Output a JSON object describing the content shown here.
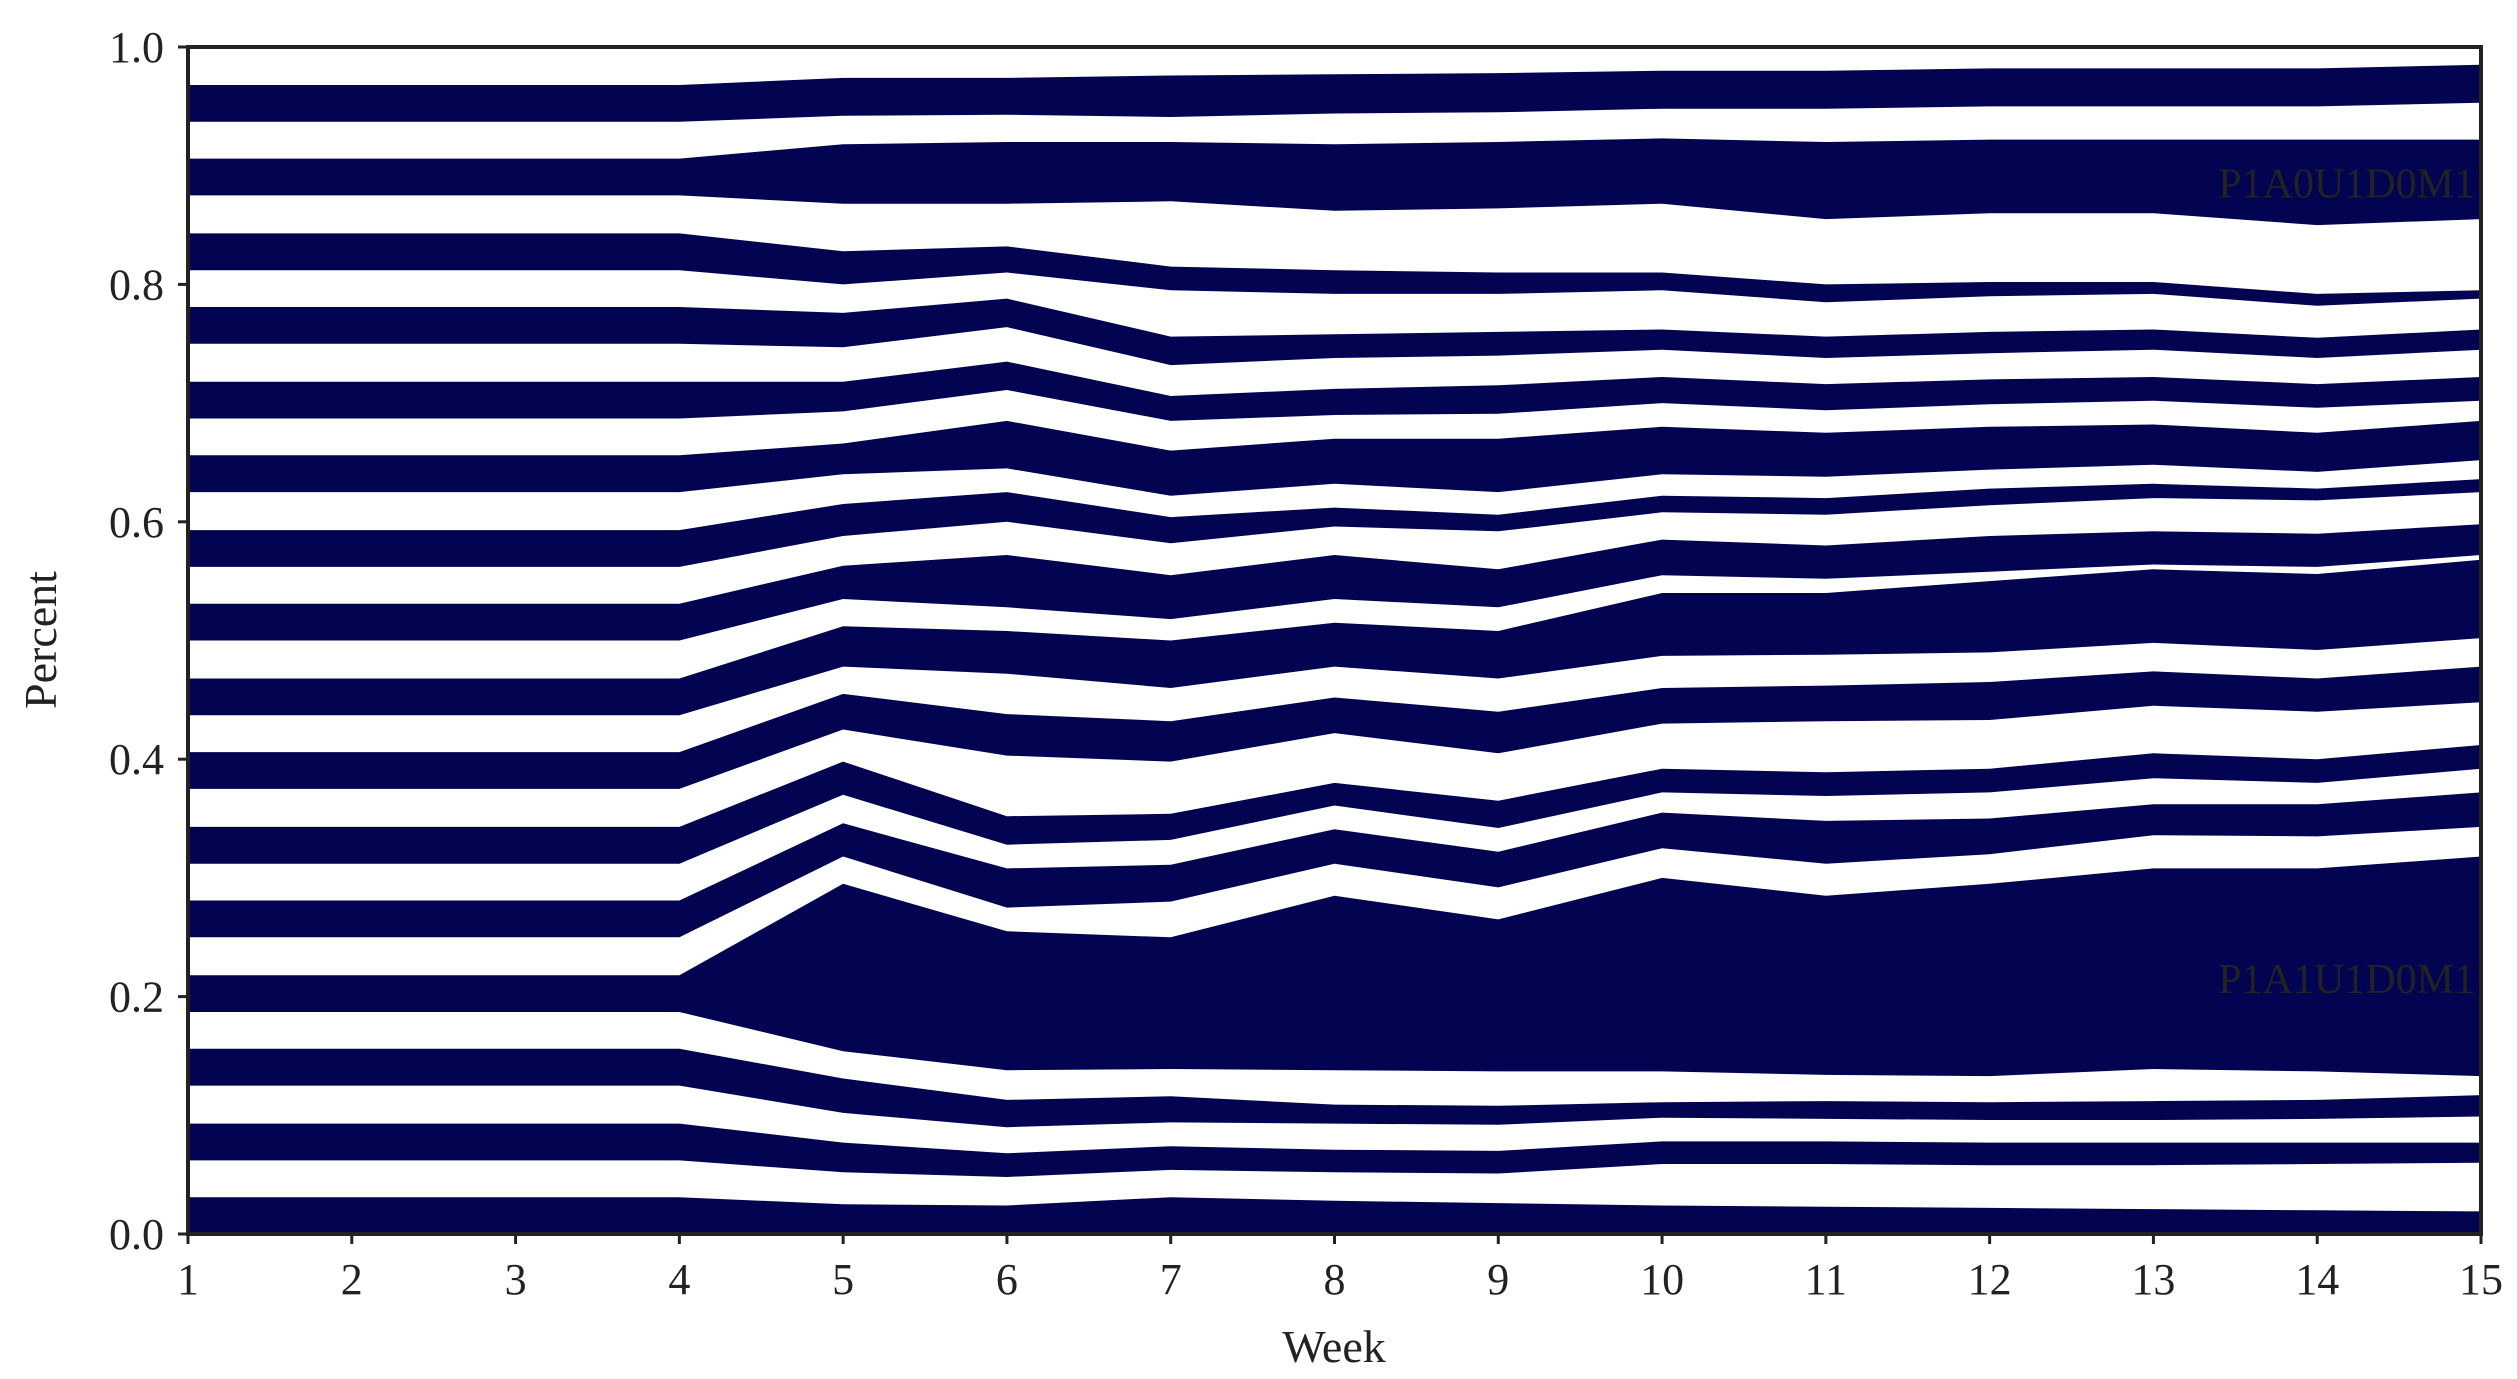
{
  "chart_data": {
    "type": "area",
    "xlabel": "Week",
    "ylabel": "Percent",
    "x": [
      1,
      2,
      3,
      4,
      5,
      6,
      7,
      8,
      9,
      10,
      11,
      12,
      13,
      14,
      15
    ],
    "xlim": [
      1,
      15
    ],
    "ylim": [
      0,
      1
    ],
    "xticks": [
      "1",
      "2",
      "3",
      "4",
      "5",
      "6",
      "7",
      "8",
      "9",
      "10",
      "11",
      "12",
      "13",
      "14",
      "15"
    ],
    "yticks": [
      "0.0",
      "0.2",
      "0.4",
      "0.6",
      "0.8",
      "1.0"
    ],
    "grid": false,
    "legend": "none",
    "fill_color": "#020452",
    "background_color": "#ffffff",
    "annotations": [
      {
        "text": "P1A0U1D0M1",
        "x": 15,
        "y": 0.885
      },
      {
        "text": "P1A1U1D0M1",
        "x": 15,
        "y": 0.215
      }
    ],
    "boundaries": [
      [
        0.0,
        0.0,
        0.0,
        0.0,
        0.0,
        0.0,
        0.0,
        0.0,
        0.0,
        0.0,
        0.0,
        0.0,
        0.0,
        0.0,
        0.0
      ],
      [
        0.031,
        0.031,
        0.031,
        0.031,
        0.025,
        0.024,
        0.031,
        0.028,
        0.026,
        0.024,
        0.023,
        0.022,
        0.021,
        0.02,
        0.019
      ],
      [
        0.062,
        0.062,
        0.062,
        0.062,
        0.052,
        0.048,
        0.054,
        0.052,
        0.051,
        0.059,
        0.059,
        0.058,
        0.058,
        0.059,
        0.06
      ],
      [
        0.093,
        0.093,
        0.093,
        0.093,
        0.077,
        0.068,
        0.074,
        0.071,
        0.07,
        0.078,
        0.078,
        0.077,
        0.077,
        0.077,
        0.077
      ],
      [
        0.125,
        0.125,
        0.125,
        0.125,
        0.102,
        0.09,
        0.094,
        0.093,
        0.092,
        0.098,
        0.097,
        0.096,
        0.096,
        0.097,
        0.099
      ],
      [
        0.156,
        0.156,
        0.156,
        0.156,
        0.131,
        0.113,
        0.116,
        0.109,
        0.108,
        0.111,
        0.112,
        0.111,
        0.112,
        0.113,
        0.117
      ],
      [
        0.187,
        0.187,
        0.187,
        0.187,
        0.154,
        0.138,
        0.139,
        0.138,
        0.137,
        0.137,
        0.134,
        0.133,
        0.139,
        0.137,
        0.133
      ],
      [
        0.218,
        0.218,
        0.218,
        0.218,
        0.295,
        0.255,
        0.25,
        0.285,
        0.265,
        0.3,
        0.285,
        0.295,
        0.308,
        0.308,
        0.318
      ],
      [
        0.25,
        0.25,
        0.25,
        0.25,
        0.318,
        0.275,
        0.28,
        0.312,
        0.292,
        0.325,
        0.312,
        0.32,
        0.336,
        0.335,
        0.343
      ],
      [
        0.281,
        0.281,
        0.281,
        0.281,
        0.346,
        0.308,
        0.311,
        0.341,
        0.322,
        0.355,
        0.348,
        0.35,
        0.362,
        0.362,
        0.372
      ],
      [
        0.312,
        0.312,
        0.312,
        0.312,
        0.37,
        0.328,
        0.332,
        0.361,
        0.342,
        0.372,
        0.369,
        0.372,
        0.384,
        0.38,
        0.392
      ],
      [
        0.343,
        0.343,
        0.343,
        0.343,
        0.398,
        0.352,
        0.354,
        0.38,
        0.365,
        0.392,
        0.389,
        0.392,
        0.405,
        0.4,
        0.412
      ],
      [
        0.375,
        0.375,
        0.375,
        0.375,
        0.425,
        0.403,
        0.398,
        0.422,
        0.405,
        0.43,
        0.432,
        0.433,
        0.445,
        0.44,
        0.448
      ],
      [
        0.406,
        0.406,
        0.406,
        0.406,
        0.455,
        0.438,
        0.432,
        0.452,
        0.44,
        0.46,
        0.462,
        0.465,
        0.474,
        0.468,
        0.478
      ],
      [
        0.437,
        0.437,
        0.437,
        0.437,
        0.478,
        0.472,
        0.46,
        0.478,
        0.468,
        0.487,
        0.488,
        0.49,
        0.498,
        0.492,
        0.502
      ],
      [
        0.468,
        0.468,
        0.468,
        0.468,
        0.512,
        0.508,
        0.5,
        0.515,
        0.508,
        0.54,
        0.54,
        0.55,
        0.56,
        0.556,
        0.568
      ],
      [
        0.5,
        0.5,
        0.5,
        0.5,
        0.535,
        0.528,
        0.518,
        0.535,
        0.528,
        0.555,
        0.552,
        0.558,
        0.564,
        0.562,
        0.572
      ],
      [
        0.531,
        0.531,
        0.531,
        0.531,
        0.563,
        0.572,
        0.555,
        0.572,
        0.56,
        0.585,
        0.58,
        0.588,
        0.592,
        0.59,
        0.598
      ],
      [
        0.562,
        0.562,
        0.562,
        0.562,
        0.588,
        0.6,
        0.582,
        0.596,
        0.592,
        0.608,
        0.606,
        0.614,
        0.62,
        0.618,
        0.625
      ],
      [
        0.593,
        0.593,
        0.593,
        0.593,
        0.615,
        0.625,
        0.604,
        0.612,
        0.606,
        0.622,
        0.62,
        0.628,
        0.632,
        0.628,
        0.636
      ],
      [
        0.625,
        0.625,
        0.625,
        0.625,
        0.64,
        0.645,
        0.622,
        0.632,
        0.625,
        0.64,
        0.638,
        0.644,
        0.648,
        0.642,
        0.652
      ],
      [
        0.656,
        0.656,
        0.656,
        0.656,
        0.666,
        0.685,
        0.66,
        0.67,
        0.67,
        0.68,
        0.675,
        0.68,
        0.682,
        0.675,
        0.685
      ],
      [
        0.687,
        0.687,
        0.687,
        0.687,
        0.693,
        0.711,
        0.685,
        0.69,
        0.691,
        0.7,
        0.694,
        0.699,
        0.702,
        0.696,
        0.702
      ],
      [
        0.718,
        0.718,
        0.718,
        0.718,
        0.718,
        0.735,
        0.706,
        0.712,
        0.715,
        0.722,
        0.716,
        0.72,
        0.722,
        0.716,
        0.722
      ],
      [
        0.75,
        0.75,
        0.75,
        0.75,
        0.747,
        0.764,
        0.732,
        0.738,
        0.74,
        0.745,
        0.738,
        0.742,
        0.745,
        0.738,
        0.745
      ],
      [
        0.781,
        0.781,
        0.781,
        0.781,
        0.776,
        0.788,
        0.756,
        0.758,
        0.76,
        0.762,
        0.756,
        0.76,
        0.762,
        0.755,
        0.762
      ],
      [
        0.812,
        0.812,
        0.812,
        0.812,
        0.8,
        0.81,
        0.795,
        0.792,
        0.792,
        0.795,
        0.785,
        0.79,
        0.792,
        0.782,
        0.788
      ],
      [
        0.843,
        0.843,
        0.843,
        0.843,
        0.828,
        0.832,
        0.815,
        0.812,
        0.81,
        0.81,
        0.8,
        0.802,
        0.802,
        0.792,
        0.795
      ],
      [
        0.875,
        0.875,
        0.875,
        0.875,
        0.868,
        0.868,
        0.87,
        0.862,
        0.864,
        0.868,
        0.855,
        0.86,
        0.86,
        0.85,
        0.855
      ],
      [
        0.906,
        0.906,
        0.906,
        0.906,
        0.918,
        0.92,
        0.92,
        0.918,
        0.92,
        0.923,
        0.92,
        0.922,
        0.922,
        0.922,
        0.922
      ],
      [
        0.937,
        0.937,
        0.937,
        0.937,
        0.942,
        0.943,
        0.941,
        0.944,
        0.945,
        0.948,
        0.948,
        0.95,
        0.95,
        0.95,
        0.953
      ],
      [
        0.968,
        0.968,
        0.968,
        0.968,
        0.974,
        0.974,
        0.976,
        0.977,
        0.978,
        0.98,
        0.98,
        0.982,
        0.982,
        0.982,
        0.985
      ],
      [
        1.0,
        1.0,
        1.0,
        1.0,
        1.0,
        1.0,
        1.0,
        1.0,
        1.0,
        1.0,
        1.0,
        1.0,
        1.0,
        1.0,
        1.0
      ]
    ]
  }
}
